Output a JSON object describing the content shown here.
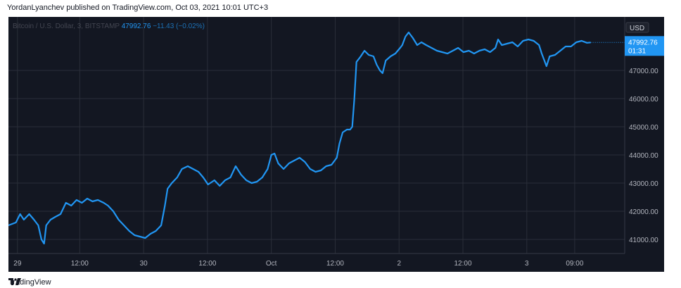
{
  "header": {
    "published_text": "YordanLyanchev published on TradingView.com, Oct 03, 2021 10:01 UTC+3"
  },
  "footer": {
    "brand": "TradingView"
  },
  "chart_data": {
    "type": "line",
    "symbol_line": {
      "symbol": "Bitcoin / U.S. Dollar, 3, BITSTAMP",
      "last": "47992.76",
      "change": "−11.43 (−0.02%)"
    },
    "currency": "USD",
    "price_label": {
      "value": "47992.76",
      "countdown": "01:31"
    },
    "y_ticks": [
      "41000.00",
      "42000.00",
      "43000.00",
      "44000.00",
      "45000.00",
      "46000.00",
      "47000.00"
    ],
    "ylim": [
      40500,
      48900
    ],
    "x_ticks": [
      {
        "label": "29",
        "t": 0.3
      },
      {
        "label": "12:00",
        "t": 12
      },
      {
        "label": "30",
        "t": 24
      },
      {
        "label": "12:00",
        "t": 36
      },
      {
        "label": "Oct",
        "t": 48
      },
      {
        "label": "12:00",
        "t": 60
      },
      {
        "label": "2",
        "t": 72
      },
      {
        "label": "12:00",
        "t": 84
      },
      {
        "label": "3",
        "t": 96
      },
      {
        "label": "09:00",
        "t": 105
      }
    ],
    "xlim": [
      -1.4,
      114.4
    ],
    "series": [
      {
        "color": "#2196f3",
        "points": [
          [
            -1.4,
            41500
          ],
          [
            0,
            41600
          ],
          [
            0.8,
            41900
          ],
          [
            1.5,
            41700
          ],
          [
            2.5,
            41900
          ],
          [
            3.4,
            41700
          ],
          [
            4.2,
            41500
          ],
          [
            4.8,
            41000
          ],
          [
            5.3,
            40850
          ],
          [
            5.7,
            41500
          ],
          [
            6.5,
            41700
          ],
          [
            7.4,
            41800
          ],
          [
            8.4,
            41900
          ],
          [
            9.4,
            42300
          ],
          [
            10.4,
            42200
          ],
          [
            11.4,
            42400
          ],
          [
            12.4,
            42300
          ],
          [
            13.4,
            42450
          ],
          [
            14.4,
            42350
          ],
          [
            15.4,
            42400
          ],
          [
            16.5,
            42300
          ],
          [
            17.3,
            42200
          ],
          [
            18.3,
            42000
          ],
          [
            19.3,
            41700
          ],
          [
            20.3,
            41500
          ],
          [
            21.3,
            41300
          ],
          [
            22.3,
            41150
          ],
          [
            23.3,
            41100
          ],
          [
            24.3,
            41050
          ],
          [
            25.3,
            41200
          ],
          [
            26.3,
            41300
          ],
          [
            27.3,
            41500
          ],
          [
            28.0,
            42200
          ],
          [
            28.5,
            42800
          ],
          [
            29.3,
            43000
          ],
          [
            30.3,
            43200
          ],
          [
            31.2,
            43500
          ],
          [
            32.3,
            43600
          ],
          [
            33.3,
            43500
          ],
          [
            34.3,
            43400
          ],
          [
            35.2,
            43200
          ],
          [
            36.1,
            42950
          ],
          [
            37.3,
            43100
          ],
          [
            38.3,
            42900
          ],
          [
            39.3,
            43100
          ],
          [
            40.3,
            43200
          ],
          [
            41.3,
            43600
          ],
          [
            42.3,
            43300
          ],
          [
            43.3,
            43100
          ],
          [
            44.3,
            43000
          ],
          [
            45.3,
            43050
          ],
          [
            46.3,
            43200
          ],
          [
            47.3,
            43500
          ],
          [
            48.0,
            44000
          ],
          [
            48.6,
            44050
          ],
          [
            49.3,
            43700
          ],
          [
            50.3,
            43500
          ],
          [
            51.3,
            43700
          ],
          [
            52.3,
            43800
          ],
          [
            53.3,
            43900
          ],
          [
            54.3,
            43750
          ],
          [
            55.3,
            43500
          ],
          [
            56.3,
            43400
          ],
          [
            57.3,
            43450
          ],
          [
            58.3,
            43600
          ],
          [
            59.3,
            43650
          ],
          [
            60.3,
            43900
          ],
          [
            60.8,
            44400
          ],
          [
            61.4,
            44800
          ],
          [
            62.2,
            44900
          ],
          [
            62.8,
            44900
          ],
          [
            63.2,
            45000
          ],
          [
            63.6,
            46000
          ],
          [
            64.0,
            47300
          ],
          [
            64.8,
            47500
          ],
          [
            65.5,
            47700
          ],
          [
            66.3,
            47550
          ],
          [
            67.2,
            47500
          ],
          [
            67.8,
            47200
          ],
          [
            68.4,
            47000
          ],
          [
            68.9,
            46900
          ],
          [
            69.5,
            47350
          ],
          [
            70.4,
            47500
          ],
          [
            71.3,
            47600
          ],
          [
            72.2,
            47800
          ],
          [
            72.6,
            47900
          ],
          [
            73.2,
            48200
          ],
          [
            73.8,
            48350
          ],
          [
            74.6,
            48150
          ],
          [
            75.4,
            47900
          ],
          [
            76.2,
            48000
          ],
          [
            77.1,
            47900
          ],
          [
            78.1,
            47800
          ],
          [
            79.1,
            47700
          ],
          [
            80.1,
            47650
          ],
          [
            81.1,
            47600
          ],
          [
            82.1,
            47700
          ],
          [
            83.1,
            47800
          ],
          [
            84.1,
            47650
          ],
          [
            85.1,
            47700
          ],
          [
            86.1,
            47600
          ],
          [
            87.1,
            47700
          ],
          [
            88.1,
            47750
          ],
          [
            89.1,
            47650
          ],
          [
            90.1,
            47800
          ],
          [
            90.6,
            48100
          ],
          [
            91.3,
            47900
          ],
          [
            92.3,
            47950
          ],
          [
            93.3,
            48000
          ],
          [
            94.3,
            47850
          ],
          [
            95.3,
            48050
          ],
          [
            96.3,
            48100
          ],
          [
            97.3,
            48050
          ],
          [
            98.3,
            47900
          ],
          [
            98.8,
            47600
          ],
          [
            99.3,
            47350
          ],
          [
            99.7,
            47150
          ],
          [
            100.3,
            47500
          ],
          [
            101.3,
            47550
          ],
          [
            102.3,
            47700
          ],
          [
            103.3,
            47850
          ],
          [
            104.3,
            47850
          ],
          [
            105.3,
            48000
          ],
          [
            106.3,
            48050
          ],
          [
            107.3,
            47980
          ],
          [
            108.0,
            47993
          ]
        ]
      }
    ]
  }
}
